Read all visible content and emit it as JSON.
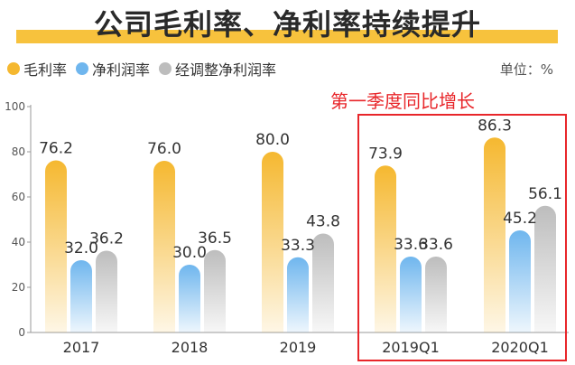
{
  "title": "公司毛利率、净利率持续提升",
  "legend": [
    {
      "label": "毛利率",
      "color": "#f5b830"
    },
    {
      "label": "净利润率",
      "color": "#6fb6ee"
    },
    {
      "label": "经调整净利润率",
      "color": "#bdbdbd"
    }
  ],
  "unit_label": "单位：%",
  "annotation": "第一季度同比增长",
  "chart_data": {
    "type": "bar",
    "categories": [
      "2017",
      "2018",
      "2019",
      "2019Q1",
      "2020Q1"
    ],
    "series": [
      {
        "name": "毛利率",
        "color": "#f5b830",
        "values": [
          76.2,
          76.0,
          80.0,
          73.9,
          86.3
        ],
        "labels": [
          "76.2",
          "76.0",
          "80.0",
          "73.9",
          "86.3"
        ]
      },
      {
        "name": "净利润率",
        "color": "#6fb6ee",
        "values": [
          32.0,
          30.0,
          33.3,
          33.6,
          45.2
        ],
        "labels": [
          "32.0",
          "30.0",
          "33.3",
          "33.6",
          "45.2"
        ]
      },
      {
        "name": "经调整净利润率",
        "color": "#bdbdbd",
        "values": [
          36.2,
          36.5,
          43.8,
          33.6,
          56.1
        ],
        "labels": [
          "36.2",
          "36.5",
          "43.8",
          "33.6",
          "56.1"
        ]
      }
    ],
    "yticks": [
      "0",
      "20",
      "40",
      "60",
      "80",
      "100"
    ],
    "ylim": [
      0,
      100
    ],
    "highlighted_categories": [
      "2019Q1",
      "2020Q1"
    ]
  }
}
